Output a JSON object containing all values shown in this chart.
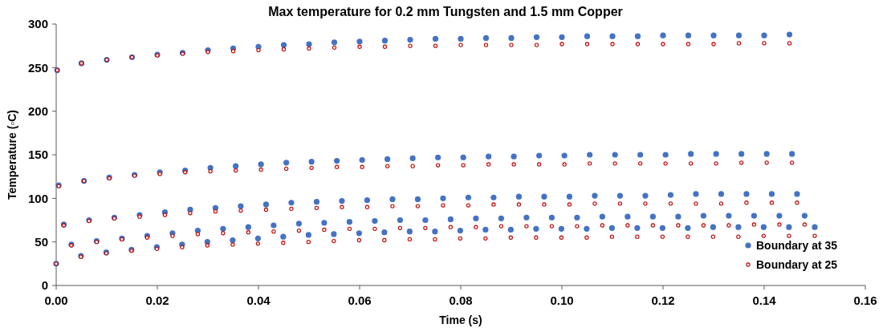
{
  "chart_data": {
    "type": "scatter",
    "title": "Max temperature for 0.2 mm Tungsten and 1.5 mm Copper",
    "xlabel": "Time (s)",
    "ylabel": "Temperature (◦C)",
    "xlim": [
      0,
      0.16
    ],
    "xticks": [
      {
        "value": 0,
        "label": "0.00"
      },
      {
        "value": 0.02,
        "label": "0.02"
      },
      {
        "value": 0.04,
        "label": "0.04"
      },
      {
        "value": 0.06,
        "label": "0.06"
      },
      {
        "value": 0.08,
        "label": "0.08"
      },
      {
        "value": 0.1,
        "label": "0.10"
      },
      {
        "value": 0.12,
        "label": "0.12"
      },
      {
        "value": 0.14,
        "label": "0.14"
      },
      {
        "value": 0.16,
        "label": "0.16"
      }
    ],
    "ylim": [
      0,
      300
    ],
    "yticks": [
      0,
      50,
      100,
      150,
      200,
      250,
      300
    ],
    "grid": false,
    "legend": "bottom right",
    "marker": "circle",
    "x": [
      0,
      0.0002,
      0.0005,
      0.0015,
      0.003,
      0.0049,
      0.005,
      0.0055,
      0.0065,
      0.008,
      0.0099,
      0.01,
      0.0105,
      0.0115,
      0.013,
      0.0149,
      0.015,
      0.0155,
      0.0165,
      0.018,
      0.0199,
      0.02,
      0.0205,
      0.0215,
      0.023,
      0.0249,
      0.025,
      0.0255,
      0.0265,
      0.028,
      0.0299,
      0.03,
      0.0305,
      0.0315,
      0.033,
      0.0349,
      0.035,
      0.0355,
      0.0365,
      0.038,
      0.0399,
      0.04,
      0.0405,
      0.0415,
      0.043,
      0.0449,
      0.045,
      0.0455,
      0.0465,
      0.048,
      0.0499,
      0.05,
      0.0505,
      0.0515,
      0.053,
      0.0549,
      0.055,
      0.0555,
      0.0565,
      0.058,
      0.0599,
      0.06,
      0.0605,
      0.0615,
      0.063,
      0.0649,
      0.065,
      0.0655,
      0.0665,
      0.068,
      0.0699,
      0.07,
      0.0705,
      0.0715,
      0.073,
      0.0749,
      0.075,
      0.0755,
      0.0765,
      0.078,
      0.0799,
      0.08,
      0.0805,
      0.0815,
      0.083,
      0.0849,
      0.085,
      0.0855,
      0.0865,
      0.088,
      0.0899,
      0.09,
      0.0905,
      0.0915,
      0.093,
      0.0949,
      0.095,
      0.0955,
      0.0965,
      0.098,
      0.0999,
      0.1,
      0.1005,
      0.1015,
      0.103,
      0.1049,
      0.105,
      0.1055,
      0.1065,
      0.108,
      0.1099,
      0.11,
      0.1105,
      0.1115,
      0.113,
      0.1149,
      0.115,
      0.1155,
      0.1165,
      0.118,
      0.1199,
      0.12,
      0.1205,
      0.1215,
      0.123,
      0.1249,
      0.125,
      0.1255,
      0.1265,
      0.128,
      0.1299,
      0.13,
      0.1305,
      0.1315,
      0.133,
      0.1349,
      0.135,
      0.1355,
      0.1365,
      0.138,
      0.1399,
      0.14,
      0.1405,
      0.1415,
      0.143,
      0.1449,
      0.145,
      0.1455,
      0.1465,
      0.148,
      0.15
    ],
    "series": [
      {
        "name": "Boundary at 35",
        "color": "#4472c4",
        "values": [
          25,
          247,
          115,
          70,
          47,
          34,
          255,
          120,
          75,
          51,
          38,
          259,
          124,
          78,
          54,
          41,
          262,
          127,
          81,
          57,
          44,
          265,
          130,
          84,
          60,
          47,
          267,
          132,
          87,
          63,
          50,
          270,
          135,
          89,
          65,
          52,
          272,
          137,
          91,
          67,
          54,
          274,
          139,
          93,
          69,
          56,
          276,
          141,
          95,
          71,
          58,
          277,
          142,
          96,
          72,
          59,
          279,
          143,
          97,
          73,
          60,
          280,
          144,
          98,
          74,
          61,
          281,
          145,
          99,
          75,
          62,
          282,
          146,
          99,
          75,
          62,
          283,
          147,
          100,
          76,
          63,
          283,
          147,
          101,
          77,
          64,
          284,
          148,
          101,
          77,
          64,
          284,
          148,
          102,
          78,
          65,
          285,
          149,
          102,
          78,
          65,
          285,
          149,
          102,
          78,
          65,
          286,
          150,
          103,
          79,
          66,
          286,
          150,
          103,
          79,
          66,
          286,
          150,
          103,
          79,
          66,
          287,
          150,
          104,
          79,
          66,
          287,
          151,
          105,
          80,
          67,
          287,
          151,
          105,
          80,
          67,
          287,
          151,
          105,
          80,
          67,
          287,
          151,
          105,
          80,
          67,
          288,
          151,
          105,
          80,
          67
        ]
      },
      {
        "name": "Boundary at 25",
        "color": "#c00000",
        "values": [
          25,
          247,
          114,
          69,
          46,
          33,
          255,
          120,
          74,
          50,
          37,
          259,
          123,
          77,
          53,
          40,
          262,
          126,
          79,
          55,
          42,
          264,
          128,
          81,
          57,
          44,
          266,
          130,
          83,
          59,
          46,
          268,
          131,
          85,
          60,
          47,
          269,
          132,
          86,
          61,
          48,
          270,
          133,
          87,
          62,
          49,
          271,
          134,
          88,
          63,
          50,
          272,
          135,
          89,
          64,
          51,
          273,
          136,
          90,
          65,
          52,
          274,
          136,
          90,
          65,
          52,
          274,
          137,
          91,
          66,
          53,
          275,
          137,
          91,
          66,
          53,
          275,
          138,
          92,
          67,
          54,
          276,
          138,
          92,
          67,
          54,
          276,
          139,
          93,
          68,
          55,
          276,
          139,
          93,
          68,
          55,
          276,
          139,
          93,
          68,
          55,
          277,
          139,
          93,
          68,
          55,
          277,
          140,
          94,
          69,
          56,
          277,
          140,
          94,
          69,
          56,
          277,
          140,
          94,
          69,
          56,
          277,
          140,
          94,
          69,
          56,
          277,
          140,
          94,
          69,
          56,
          277,
          140,
          94,
          69,
          56,
          278,
          141,
          95,
          70,
          57,
          278,
          141,
          95,
          70,
          57,
          278,
          141,
          95,
          70,
          57
        ]
      }
    ]
  }
}
